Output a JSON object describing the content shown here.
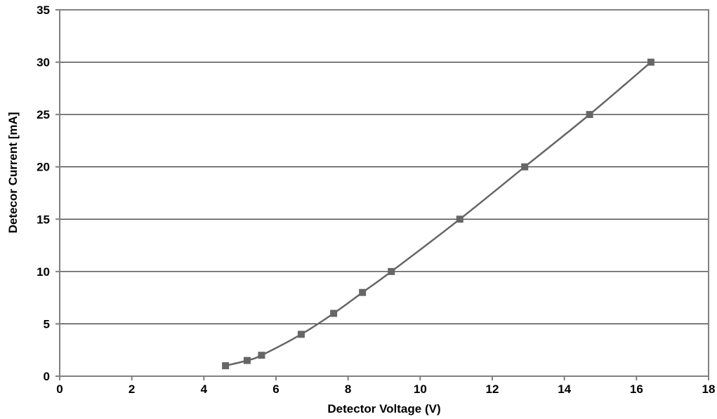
{
  "chart_data": {
    "type": "line",
    "title": "",
    "xlabel": "Detector Voltage (V)",
    "ylabel": "Detecor Current [mA]",
    "xlim": [
      0,
      18
    ],
    "ylim": [
      0,
      35
    ],
    "x_ticks": [
      "0",
      "2",
      "4",
      "6",
      "8",
      "10",
      "12",
      "14",
      "16",
      "18"
    ],
    "y_ticks": [
      "0",
      "5",
      "10",
      "15",
      "20",
      "25",
      "30",
      "35"
    ],
    "grid": "horizontal",
    "legend": "none",
    "series": [
      {
        "color": "#666666",
        "marker": "square",
        "points": [
          {
            "x": 4.6,
            "y": 1
          },
          {
            "x": 5.2,
            "y": 1.5
          },
          {
            "x": 5.6,
            "y": 2
          },
          {
            "x": 6.7,
            "y": 4
          },
          {
            "x": 7.6,
            "y": 6
          },
          {
            "x": 8.4,
            "y": 8
          },
          {
            "x": 9.2,
            "y": 10
          },
          {
            "x": 11.1,
            "y": 15
          },
          {
            "x": 12.9,
            "y": 20
          },
          {
            "x": 14.7,
            "y": 25
          },
          {
            "x": 16.4,
            "y": 30
          }
        ]
      }
    ]
  }
}
